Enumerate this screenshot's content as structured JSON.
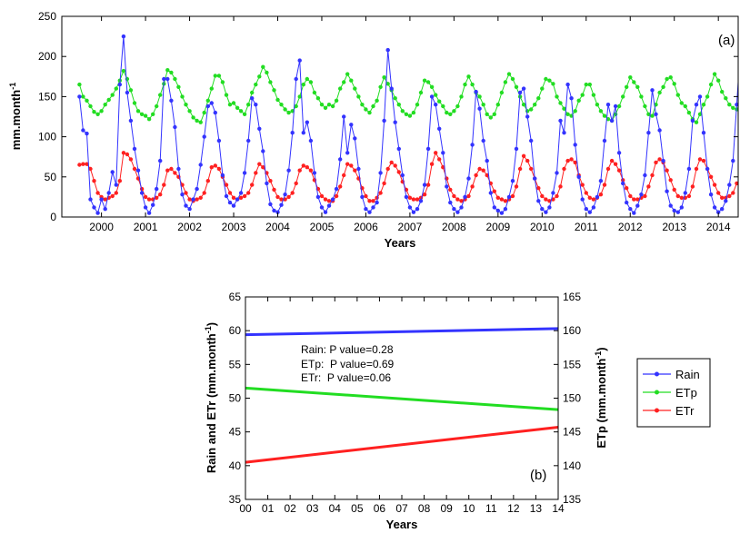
{
  "colors": {
    "rain": "#3333ff",
    "etp": "#22dd22",
    "etr": "#ff2020"
  },
  "chart_data": [
    {
      "type": "line",
      "panel_label": "(a)",
      "xlabel": "Years",
      "ylabel": "mm.month",
      "ylabel_sup": "-1",
      "xlim": [
        1999.6,
        2014.95
      ],
      "ylim": [
        0,
        250
      ],
      "y_ticks": [
        "0",
        "50",
        "100",
        "150",
        "200",
        "250"
      ],
      "x_ticks": [
        "2000",
        "2001",
        "2002",
        "2003",
        "2004",
        "2005",
        "2006",
        "2007",
        "2008",
        "2009",
        "2010",
        "2011",
        "2012",
        "2013",
        "2014"
      ],
      "series": [
        {
          "key": "etp",
          "values": [
            165,
            150,
            145,
            138,
            131,
            128,
            132,
            140,
            146,
            152,
            160,
            170,
            182,
            172,
            158,
            142,
            132,
            128,
            126,
            122,
            128,
            138,
            152,
            166,
            183,
            180,
            172,
            162,
            150,
            140,
            132,
            124,
            120,
            118,
            130,
            145,
            160,
            176,
            176,
            168,
            152,
            140,
            142,
            136,
            132,
            128,
            140,
            155,
            165,
            175,
            187,
            180,
            168,
            158,
            146,
            140,
            134,
            130,
            132,
            138,
            150,
            165,
            172,
            168,
            155,
            148,
            140,
            136,
            140,
            138,
            145,
            160,
            168,
            178,
            170,
            160,
            150,
            140,
            134,
            130,
            138,
            145,
            162,
            174,
            166,
            158,
            148,
            140,
            132,
            128,
            126,
            130,
            140,
            155,
            170,
            168,
            162,
            152,
            144,
            138,
            130,
            128,
            132,
            138,
            150,
            165,
            175,
            165,
            155,
            150,
            140,
            128,
            124,
            128,
            140,
            155,
            168,
            178,
            172,
            162,
            150,
            140,
            132,
            134,
            140,
            148,
            160,
            172,
            170,
            166,
            150,
            142,
            135,
            128,
            126,
            132,
            145,
            152,
            165,
            165,
            152,
            140,
            132,
            126,
            122,
            120,
            128,
            138,
            150,
            162,
            174,
            168,
            162,
            150,
            138,
            128,
            126,
            140,
            155,
            162,
            172,
            174,
            166,
            152,
            142,
            138,
            130,
            122,
            118,
            128,
            140,
            150,
            165,
            178,
            170,
            156,
            148,
            140,
            136,
            134,
            140,
            150,
            160,
            168
          ]
        },
        {
          "key": "etr",
          "values": [
            65,
            66,
            66,
            60,
            45,
            30,
            25,
            22,
            24,
            26,
            30,
            45,
            80,
            78,
            72,
            60,
            48,
            35,
            25,
            22,
            22,
            24,
            28,
            40,
            58,
            60,
            55,
            50,
            40,
            30,
            22,
            20,
            22,
            24,
            30,
            45,
            62,
            64,
            60,
            50,
            40,
            30,
            24,
            22,
            24,
            26,
            30,
            40,
            55,
            66,
            62,
            55,
            45,
            34,
            25,
            22,
            22,
            25,
            30,
            42,
            58,
            64,
            62,
            58,
            46,
            35,
            26,
            22,
            20,
            20,
            26,
            38,
            52,
            66,
            64,
            58,
            48,
            36,
            26,
            20,
            20,
            24,
            30,
            42,
            60,
            68,
            64,
            56,
            44,
            34,
            24,
            22,
            22,
            24,
            28,
            40,
            66,
            80,
            72,
            62,
            48,
            34,
            26,
            22,
            20,
            22,
            26,
            38,
            52,
            60,
            58,
            52,
            42,
            32,
            24,
            22,
            20,
            22,
            26,
            38,
            60,
            76,
            70,
            60,
            48,
            36,
            26,
            22,
            20,
            22,
            26,
            38,
            60,
            70,
            72,
            68,
            52,
            40,
            30,
            24,
            22,
            24,
            28,
            40,
            60,
            70,
            66,
            58,
            46,
            36,
            26,
            22,
            22,
            24,
            26,
            38,
            52,
            68,
            72,
            68,
            58,
            46,
            34,
            26,
            24,
            24,
            26,
            38,
            60,
            72,
            70,
            60,
            50,
            40,
            30,
            24,
            24,
            26,
            30,
            42
          ]
        },
        {
          "key": "rain",
          "values": [
            150,
            108,
            104,
            22,
            12,
            5,
            22,
            10,
            30,
            56,
            40,
            165,
            225,
            155,
            120,
            85,
            58,
            30,
            12,
            5,
            15,
            35,
            70,
            172,
            172,
            145,
            112,
            60,
            28,
            14,
            10,
            22,
            35,
            65,
            100,
            138,
            142,
            130,
            95,
            52,
            26,
            18,
            14,
            22,
            30,
            55,
            95,
            148,
            140,
            110,
            82,
            42,
            16,
            8,
            6,
            15,
            28,
            58,
            105,
            172,
            195,
            105,
            118,
            95,
            55,
            25,
            12,
            6,
            14,
            22,
            35,
            72,
            125,
            80,
            115,
            98,
            60,
            25,
            10,
            6,
            12,
            18,
            55,
            120,
            208,
            160,
            118,
            85,
            52,
            25,
            12,
            6,
            10,
            20,
            40,
            85,
            150,
            140,
            110,
            80,
            38,
            18,
            10,
            6,
            12,
            25,
            48,
            90,
            156,
            135,
            95,
            70,
            30,
            12,
            8,
            5,
            10,
            25,
            45,
            85,
            155,
            160,
            125,
            95,
            48,
            20,
            10,
            6,
            12,
            30,
            55,
            120,
            105,
            165,
            148,
            90,
            50,
            22,
            10,
            6,
            12,
            25,
            45,
            95,
            140,
            120,
            138,
            80,
            42,
            18,
            10,
            5,
            14,
            28,
            52,
            105,
            158,
            128,
            108,
            70,
            32,
            14,
            8,
            6,
            12,
            30,
            60,
            120,
            140,
            150,
            105,
            60,
            28,
            12,
            6,
            10,
            20,
            40,
            70,
            140,
            210,
            160,
            105,
            65,
            40,
            22,
            14,
            10,
            25,
            60,
            55
          ]
        }
      ]
    },
    {
      "type": "line",
      "panel_label": "(b)",
      "xlabel": "Years",
      "ylabel_left": "Rain and ETr (mm.month",
      "ylabel_right": "ETp (mm.month",
      "ylabel_sup": "-1",
      "ylabel_close": ")",
      "x_ticks": [
        "00",
        "01",
        "02",
        "03",
        "04",
        "05",
        "06",
        "07",
        "08",
        "09",
        "10",
        "11",
        "12",
        "13",
        "14"
      ],
      "xlim": [
        0,
        14
      ],
      "ylim_left": [
        35,
        65
      ],
      "ylim_right": [
        135,
        165
      ],
      "y_ticks_left": [
        "35",
        "40",
        "45",
        "50",
        "55",
        "60",
        "65"
      ],
      "y_ticks_right": [
        "135",
        "140",
        "145",
        "150",
        "155",
        "160",
        "165"
      ],
      "series": [
        {
          "name": "Rain",
          "key": "rain",
          "axis": "left",
          "x": [
            0,
            14
          ],
          "values": [
            59.4,
            60.3
          ]
        },
        {
          "name": "ETp",
          "key": "etp",
          "axis": "right",
          "x": [
            0,
            14
          ],
          "values": [
            151.5,
            148.3
          ]
        },
        {
          "name": "ETr",
          "key": "etr",
          "axis": "left",
          "x": [
            0,
            14
          ],
          "values": [
            40.5,
            45.7
          ]
        }
      ],
      "annotations": [
        "Rain: P value=0.28",
        "ETp:  P value=0.69",
        "ETr:  P value=0.06"
      ],
      "legend": [
        "Rain",
        "ETp",
        "ETr"
      ],
      "legend_position": "right, outside"
    }
  ]
}
